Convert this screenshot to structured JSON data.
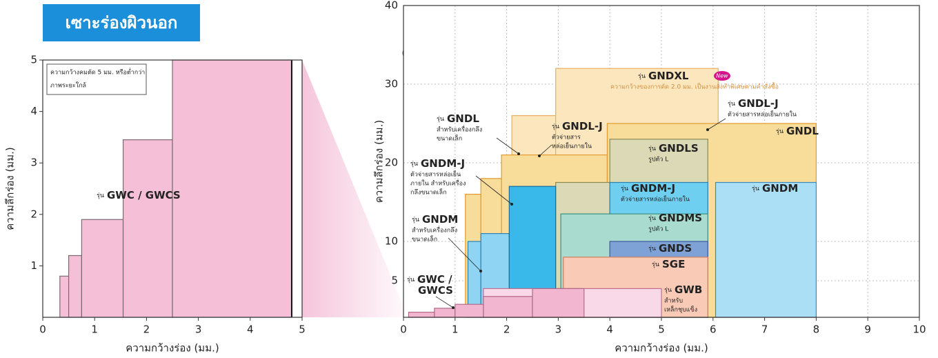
{
  "header": {
    "title": "เซาะร่องผิวนอก"
  },
  "chart_data": [
    {
      "type": "step-area",
      "xlabel": "ความกว้างร่อง (มม.)",
      "ylabel": "ความลึกร่อง (มม.)",
      "xlim": [
        0,
        5
      ],
      "ylim": [
        0,
        5
      ],
      "xticks": [
        0,
        1,
        2,
        3,
        4,
        5
      ],
      "yticks": [
        1,
        2,
        3,
        4,
        5
      ],
      "grid": false,
      "note": [
        "ความกว้างคมตัด 5 มม. หรือต่ำกว่า",
        "ภาพระยะใกล้"
      ],
      "limit_line": 4.8,
      "series": [
        {
          "color": "#f4bfd7",
          "edge": "#7a6a70",
          "bins": [
            0.33,
            0.5,
            0.75,
            1.55,
            2.5,
            4.8
          ],
          "values": [
            0.8,
            1.2,
            1.9,
            3.45,
            5
          ]
        }
      ],
      "annotations": [
        {
          "prefix": "รุ่น",
          "model": [
            "GWC / GWCS"
          ],
          "lines": []
        }
      ]
    },
    {
      "type": "step-area",
      "xlabel": "ความกว้างร่อง (มม.)",
      "ylabel": "ความลึกร่อง (มม.)",
      "xlim": [
        0,
        10
      ],
      "ylim": [
        0.35,
        40
      ],
      "xticks": [
        0,
        1,
        2,
        3,
        4,
        5,
        6,
        7,
        8,
        9,
        10
      ],
      "yticks": [
        5,
        10,
        20,
        30,
        40
      ],
      "grid": true,
      "series": [
        {
          "color": "#fce6bd",
          "edge": "#e8b060",
          "bins": [
            2.1,
            2.95,
            6.1
          ],
          "values": [
            26,
            32
          ]
        },
        {
          "color": "#f8dc9a",
          "edge": "#e09a30",
          "bins": [
            1.2,
            1.5,
            1.9,
            3.95,
            8
          ],
          "values": [
            16,
            18,
            21,
            25
          ]
        },
        {
          "color": "#dcd9b6",
          "edge": "#8a8a50",
          "bins": [
            2.95,
            4,
            5.9
          ],
          "values": [
            17.5,
            23
          ]
        },
        {
          "color": "#abdff5",
          "edge": "#3a8ac0",
          "bins": [
            6.05,
            8
          ],
          "values": [
            17.5
          ]
        },
        {
          "color": "#6fcff0",
          "edge": "#2a80b0",
          "bins": [
            4,
            5.9
          ],
          "values": [
            17.5
          ]
        },
        {
          "color": "#a9dbcf",
          "edge": "#3a9080",
          "bins": [
            3.05,
            5.9
          ],
          "values": [
            13.5
          ]
        },
        {
          "color": "#7fa2d6",
          "edge": "#3a5a9a",
          "bins": [
            4,
            5.9
          ],
          "values": [
            10
          ]
        },
        {
          "color": "#f9cab5",
          "edge": "#d08060",
          "bins": [
            3.1,
            5.9
          ],
          "values": [
            8
          ]
        },
        {
          "color": "#8fd4f2",
          "edge": "#2a80b0",
          "bins": [
            1.25,
            1.5,
            2.05
          ],
          "values": [
            10,
            11
          ]
        },
        {
          "color": "#38b9ea",
          "edge": "#1a6a9a",
          "bins": [
            2.05,
            2.95
          ],
          "values": [
            17
          ]
        },
        {
          "color": "#f9d8e7",
          "edge": "#c07090",
          "bins": [
            1.55,
            5
          ],
          "values": [
            4
          ]
        },
        {
          "color": "#f2b6d1",
          "edge": "#b06a88",
          "bins": [
            0.1,
            0.6,
            1.0,
            1.55,
            2.5,
            3.5
          ],
          "values": [
            1,
            1.5,
            2,
            3,
            4
          ]
        }
      ],
      "annotations": [
        {
          "prefix": "รุ่น",
          "model": [
            "GNDXL"
          ],
          "lines": [
            "ความกว้างของการตัด 2.0 มม. เป็นงานสั่งทำพิเศษตามคำสั่งซื้อ"
          ],
          "badge": "New"
        },
        {
          "prefix": "รุ่น",
          "model": [
            "GNDL-J"
          ],
          "lines": [
            "ตัวจ่ายสารหล่อเย็นภายใน"
          ]
        },
        {
          "prefix": "รุ่น",
          "model": [
            "GNDL"
          ],
          "lines": []
        },
        {
          "prefix": "รุ่น",
          "model": [
            "GNDLS"
          ],
          "lines": [
            "รูปตัว L"
          ]
        },
        {
          "prefix": "รุ่น",
          "model": [
            "GNDM"
          ],
          "lines": []
        },
        {
          "prefix": "รุ่น",
          "model": [
            "GNDM-J"
          ],
          "lines": [
            "ตัวจ่ายสารหล่อเย็นภายใน"
          ]
        },
        {
          "prefix": "รุ่น",
          "model": [
            "GNDMS"
          ],
          "lines": [
            "รูปตัว L"
          ]
        },
        {
          "prefix": "รุ่น",
          "model": [
            "GNDS"
          ],
          "lines": []
        },
        {
          "prefix": "รุ่น",
          "model": [
            "SGE"
          ],
          "lines": []
        },
        {
          "prefix": "รุ่น",
          "model": [
            "GWB"
          ],
          "lines": [
            "สำหรับ",
            "เหล็กชุบแข็ง"
          ]
        },
        {
          "prefix": "รุ่น",
          "model": [
            "GNDL"
          ],
          "lines": [
            "สำหรับเครื่องกลึง",
            "ขนาดเล็ก"
          ]
        },
        {
          "prefix": "รุ่น",
          "model": [
            "GNDL-J"
          ],
          "lines": [
            "ตัวจ่ายสาร",
            "หล่อเย็นภายใน"
          ]
        },
        {
          "prefix": "รุ่น",
          "model": [
            "GNDM-J"
          ],
          "lines": [
            "ตัวจ่ายสารหล่อเย็น",
            "ภายใน สำหรับเครื่อง",
            "กลึงขนาดเล็ก"
          ]
        },
        {
          "prefix": "รุ่น",
          "model": [
            "GNDM"
          ],
          "lines": [
            "สำหรับเครื่องกลึง",
            "ขนาดเล็ก"
          ]
        },
        {
          "prefix": "รุ่น",
          "model": [
            "GWC /",
            "GWCS"
          ],
          "lines": []
        }
      ]
    }
  ]
}
